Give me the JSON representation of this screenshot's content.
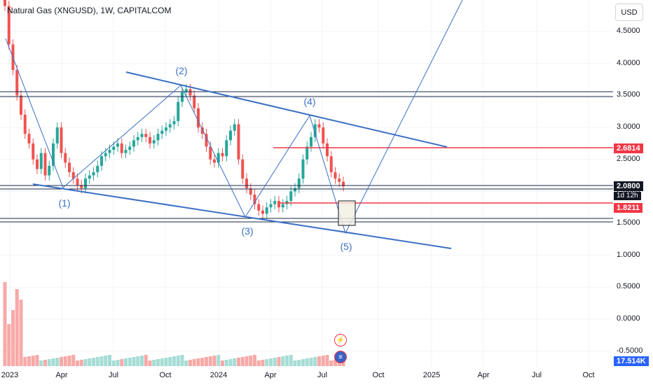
{
  "header": {
    "title": "Natural Gas (XNGUSD), 1W, CAPITALCOM"
  },
  "currency_button": "USD",
  "y_axis": {
    "ticks": [
      "4.5000",
      "4.0000",
      "3.5000",
      "3.0000",
      "2.5000",
      "2.0000",
      "1.5000",
      "1.0000",
      "0.5000",
      "0.0000",
      "-0.5000"
    ],
    "values": [
      4.5,
      4.0,
      3.5,
      3.0,
      2.5,
      2.0,
      1.5,
      1.0,
      0.5,
      0.0,
      -0.5
    ]
  },
  "x_axis": {
    "ticks": [
      "2023",
      "Apr",
      "Jul",
      "Oct",
      "2024",
      "Apr",
      "Jul",
      "Oct",
      "2025",
      "Apr",
      "Jul",
      "Oct"
    ]
  },
  "price_badges": {
    "level_2681": "2.6814",
    "current": "2.0800",
    "countdown": "1d 12h",
    "level_1821": "1.8211",
    "volume": "17.514K"
  },
  "wave_labels": [
    "(1)",
    "(2)",
    "(3)",
    "(4)",
    "(5)"
  ],
  "event_icons": {
    "earnings": "lightning-icon",
    "flag": "us-flag-icon"
  },
  "colors": {
    "up": "#26a69a",
    "down": "#ef5350",
    "trend": "#3b6fc4",
    "level": "#f23645",
    "volume_up": "#a6dcd5",
    "volume_down": "#f7a9a7"
  },
  "chart_data": {
    "type": "candlestick",
    "series": [
      {
        "name": "price",
        "values": [
          4.9,
          4.3,
          3.9,
          3.5,
          3.2,
          2.9,
          2.75,
          2.5,
          2.35,
          2.6,
          2.25,
          2.4,
          2.75,
          3.0,
          2.6,
          2.45,
          2.3,
          2.2,
          2.1,
          2.05,
          2.2,
          2.25,
          2.3,
          2.4,
          2.55,
          2.6,
          2.65,
          2.7,
          2.75,
          2.6,
          2.65,
          2.7,
          2.8,
          2.85,
          2.9,
          2.85,
          2.75,
          2.8,
          2.9,
          2.95,
          3.0,
          3.05,
          3.1,
          3.4,
          3.55,
          3.6,
          3.5,
          3.3,
          3.0,
          2.9,
          2.7,
          2.5,
          2.45,
          2.6,
          2.55,
          2.8,
          2.95,
          3.05,
          2.5,
          2.2,
          2.05,
          1.95,
          1.8,
          1.7,
          1.65,
          1.75,
          1.8,
          1.85,
          1.75,
          1.8,
          1.85,
          2.0,
          2.05,
          2.2,
          2.5,
          2.7,
          2.85,
          3.05,
          3.0,
          2.75,
          2.55,
          2.3,
          2.2,
          2.15,
          2.08
        ]
      }
    ],
    "ylim": [
      -0.5,
      5.0
    ],
    "xlabel": "",
    "ylabel": ""
  }
}
